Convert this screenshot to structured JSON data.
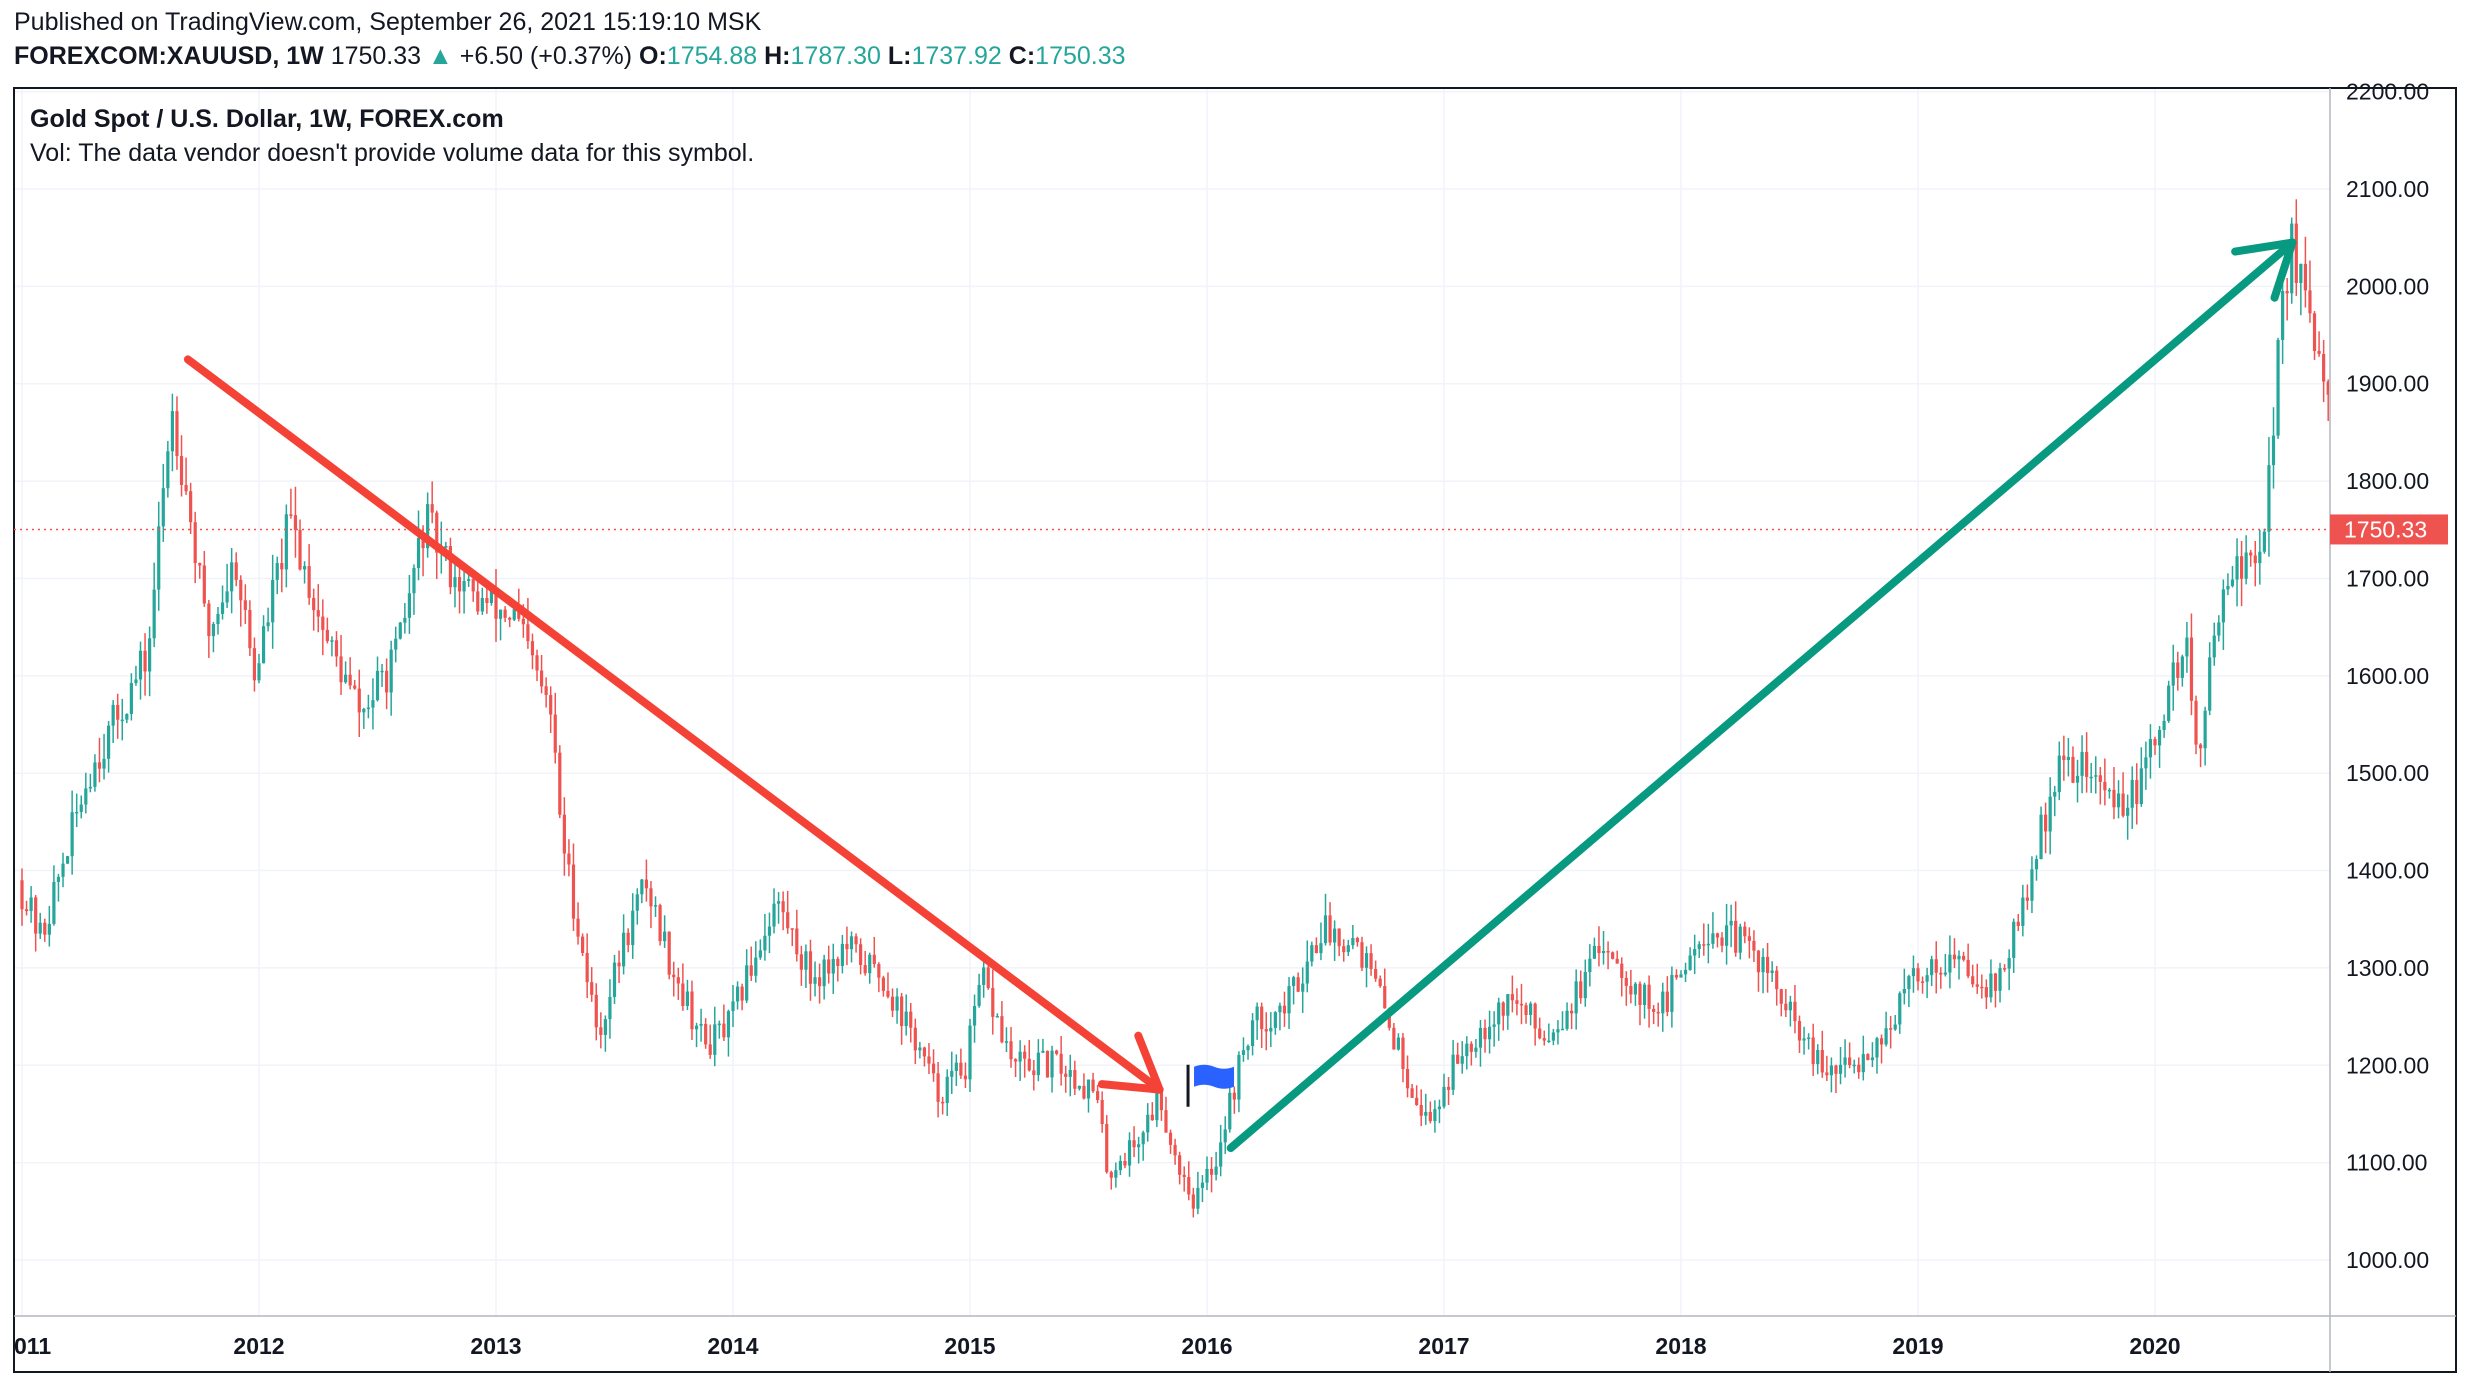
{
  "header": {
    "published": "Published on TradingView.com, September 26, 2021 15:19:10 MSK",
    "symbol": "FOREXCOM:XAUUSD, 1W",
    "last": "1750.33",
    "up_arrow": "▲",
    "change": "+6.50 (+0.37%)",
    "o_label": "O:",
    "o_value": "1754.88",
    "h_label": "H:",
    "h_value": "1787.30",
    "l_label": "L:",
    "l_value": "1737.92",
    "c_label": "C:",
    "c_value": "1750.33"
  },
  "legend": {
    "title": "Gold Spot / U.S. Dollar, 1W, FOREX.com",
    "volume_note": "Vol: The data vendor doesn't provide volume data for this symbol."
  },
  "colors": {
    "up": "#26a69a",
    "down": "#ef5350",
    "red_arrow": "#f44336",
    "green_arrow": "#089981",
    "price_line": "#ef5350",
    "flag": "#2962ff",
    "grid": "#f0f3fa",
    "axis_text": "#131722"
  },
  "chart_data": {
    "type": "candlestick",
    "title": "Gold Spot / U.S. Dollar, 1W, FOREX.com",
    "xlabel": "",
    "ylabel": "",
    "ylim": [
      950,
      2200
    ],
    "x_ticks": [
      "011",
      "2012",
      "2013",
      "2014",
      "2015",
      "2016",
      "2017",
      "2018",
      "2019",
      "2020"
    ],
    "y_ticks": [
      "1000.00",
      "1100.00",
      "1200.00",
      "1300.00",
      "1400.00",
      "1500.00",
      "1600.00",
      "1700.00",
      "1800.00",
      "1900.00",
      "2000.00",
      "2100.00",
      "2200.00"
    ],
    "grid": true,
    "last_price": 1750.33,
    "last_price_label": "1750.33",
    "price_path": [
      {
        "t": 2011.0,
        "p": 1390
      },
      {
        "t": 2011.1,
        "p": 1330
      },
      {
        "t": 2011.3,
        "p": 1500
      },
      {
        "t": 2011.55,
        "p": 1620
      },
      {
        "t": 2011.65,
        "p": 1880
      },
      {
        "t": 2011.72,
        "p": 1780
      },
      {
        "t": 2011.8,
        "p": 1640
      },
      {
        "t": 2011.92,
        "p": 1720
      },
      {
        "t": 2012.0,
        "p": 1600
      },
      {
        "t": 2012.15,
        "p": 1760
      },
      {
        "t": 2012.3,
        "p": 1640
      },
      {
        "t": 2012.45,
        "p": 1560
      },
      {
        "t": 2012.6,
        "p": 1620
      },
      {
        "t": 2012.72,
        "p": 1760
      },
      {
        "t": 2012.8,
        "p": 1720
      },
      {
        "t": 2012.92,
        "p": 1680
      },
      {
        "t": 2013.1,
        "p": 1660
      },
      {
        "t": 2013.25,
        "p": 1560
      },
      {
        "t": 2013.3,
        "p": 1430
      },
      {
        "t": 2013.45,
        "p": 1230
      },
      {
        "t": 2013.55,
        "p": 1320
      },
      {
        "t": 2013.65,
        "p": 1390
      },
      {
        "t": 2013.75,
        "p": 1310
      },
      {
        "t": 2013.9,
        "p": 1220
      },
      {
        "t": 2014.0,
        "p": 1240
      },
      {
        "t": 2014.2,
        "p": 1370
      },
      {
        "t": 2014.35,
        "p": 1290
      },
      {
        "t": 2014.5,
        "p": 1320
      },
      {
        "t": 2014.65,
        "p": 1290
      },
      {
        "t": 2014.8,
        "p": 1220
      },
      {
        "t": 2014.88,
        "p": 1170
      },
      {
        "t": 2015.0,
        "p": 1200
      },
      {
        "t": 2015.07,
        "p": 1290
      },
      {
        "t": 2015.2,
        "p": 1200
      },
      {
        "t": 2015.4,
        "p": 1200
      },
      {
        "t": 2015.55,
        "p": 1170
      },
      {
        "t": 2015.6,
        "p": 1090
      },
      {
        "t": 2015.72,
        "p": 1120
      },
      {
        "t": 2015.82,
        "p": 1170
      },
      {
        "t": 2015.88,
        "p": 1110
      },
      {
        "t": 2015.97,
        "p": 1060
      },
      {
        "t": 2016.05,
        "p": 1100
      },
      {
        "t": 2016.2,
        "p": 1240
      },
      {
        "t": 2016.35,
        "p": 1260
      },
      {
        "t": 2016.5,
        "p": 1340
      },
      {
        "t": 2016.65,
        "p": 1330
      },
      {
        "t": 2016.75,
        "p": 1270
      },
      {
        "t": 2016.85,
        "p": 1200
      },
      {
        "t": 2016.95,
        "p": 1140
      },
      {
        "t": 2017.1,
        "p": 1220
      },
      {
        "t": 2017.3,
        "p": 1270
      },
      {
        "t": 2017.45,
        "p": 1230
      },
      {
        "t": 2017.6,
        "p": 1280
      },
      {
        "t": 2017.7,
        "p": 1330
      },
      {
        "t": 2017.85,
        "p": 1270
      },
      {
        "t": 2017.95,
        "p": 1260
      },
      {
        "t": 2018.1,
        "p": 1340
      },
      {
        "t": 2018.25,
        "p": 1330
      },
      {
        "t": 2018.35,
        "p": 1310
      },
      {
        "t": 2018.5,
        "p": 1240
      },
      {
        "t": 2018.62,
        "p": 1190
      },
      {
        "t": 2018.75,
        "p": 1200
      },
      {
        "t": 2018.9,
        "p": 1240
      },
      {
        "t": 2019.0,
        "p": 1290
      },
      {
        "t": 2019.15,
        "p": 1310
      },
      {
        "t": 2019.35,
        "p": 1280
      },
      {
        "t": 2019.45,
        "p": 1350
      },
      {
        "t": 2019.6,
        "p": 1500
      },
      {
        "t": 2019.7,
        "p": 1510
      },
      {
        "t": 2019.85,
        "p": 1470
      },
      {
        "t": 2019.95,
        "p": 1480
      },
      {
        "t": 2020.05,
        "p": 1560
      },
      {
        "t": 2020.15,
        "p": 1640
      },
      {
        "t": 2020.2,
        "p": 1500
      },
      {
        "t": 2020.3,
        "p": 1700
      },
      {
        "t": 2020.45,
        "p": 1720
      },
      {
        "t": 2020.5,
        "p": 1800
      },
      {
        "t": 2020.55,
        "p": 1970
      },
      {
        "t": 2020.6,
        "p": 2050
      },
      {
        "t": 2020.68,
        "p": 1940
      },
      {
        "t": 2020.75,
        "p": 1880
      },
      {
        "t": 2020.78,
        "p": 1910
      }
    ],
    "annotations": [
      {
        "type": "arrow",
        "color": "red",
        "from": {
          "t": 2011.7,
          "p": 1925
        },
        "to": {
          "t": 2015.8,
          "p": 1175
        }
      },
      {
        "type": "arrow",
        "color": "green",
        "from": {
          "t": 2016.1,
          "p": 1115
        },
        "to": {
          "t": 2020.58,
          "p": 2045
        }
      },
      {
        "type": "flag",
        "at": {
          "t": 2015.92,
          "p": 1180
        }
      }
    ]
  }
}
